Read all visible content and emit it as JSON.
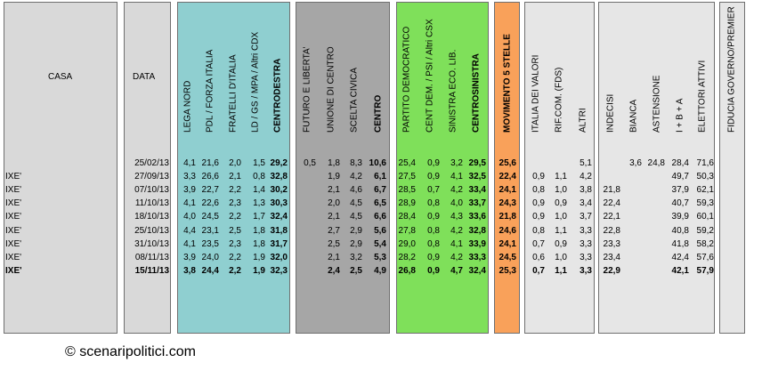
{
  "headers": {
    "casa": "CASA",
    "data": "DATA",
    "cdx": [
      "LEGA NORD",
      "PDL / FORZA ITALIA",
      "FRATELLI D'ITALIA",
      "LD / GS / MPA / Altri CDX",
      "CENTRODESTRA"
    ],
    "centro": [
      "FUTURO E LIBERTA'",
      "UNIONE DI CENTRO",
      "SCELTA CIVICA",
      "CENTRO"
    ],
    "csx": [
      "PARTITO DEMOCRATICO",
      "CENT DEM. / PSI / Altri CSX",
      "SINISTRA ECO. LIB.",
      "CENTROSINISTRA"
    ],
    "m5s": "MOVIMENTO 5 STELLE",
    "altri": [
      "ITALIA DEI VALORI",
      "RIF.COM. (FDS)",
      "ALTRI"
    ],
    "voto": [
      "INDECISI",
      "BIANCA",
      "ASTENSIONE",
      "I + B + A",
      "ELETTORI ATTIVI"
    ],
    "fiducia": "FIDUCIA GOVERNO/PREMIER"
  },
  "rows": [
    {
      "casa": "",
      "data": "25/02/13",
      "vals": [
        "4,1",
        "21,6",
        "2,0",
        "1,5",
        "29,2",
        "0,5",
        "1,8",
        "8,3",
        "10,6",
        "25,4",
        "0,9",
        "3,2",
        "29,5",
        "25,6",
        "",
        "",
        "5,1",
        "",
        "3,6",
        "24,8",
        "28,4",
        "71,6"
      ],
      "bold": false
    },
    {
      "casa": "IXE'",
      "data": "27/09/13",
      "vals": [
        "3,3",
        "26,6",
        "2,1",
        "0,8",
        "32,8",
        "",
        "1,9",
        "4,2",
        "6,1",
        "27,5",
        "0,9",
        "4,1",
        "32,5",
        "22,4",
        "0,9",
        "1,1",
        "4,2",
        "",
        "",
        "",
        "49,7",
        "50,3"
      ],
      "bold": false
    },
    {
      "casa": "IXE'",
      "data": "07/10/13",
      "vals": [
        "3,9",
        "22,7",
        "2,2",
        "1,4",
        "30,2",
        "",
        "2,1",
        "4,6",
        "6,7",
        "28,5",
        "0,7",
        "4,2",
        "33,4",
        "24,1",
        "0,8",
        "1,0",
        "3,8",
        "21,8",
        "",
        "",
        "37,9",
        "62,1"
      ],
      "bold": false
    },
    {
      "casa": "IXE'",
      "data": "11/10/13",
      "vals": [
        "4,1",
        "22,6",
        "2,3",
        "1,3",
        "30,3",
        "",
        "2,0",
        "4,5",
        "6,5",
        "28,9",
        "0,8",
        "4,0",
        "33,7",
        "24,3",
        "0,9",
        "0,9",
        "3,4",
        "22,4",
        "",
        "",
        "40,7",
        "59,3"
      ],
      "bold": false
    },
    {
      "casa": "IXE'",
      "data": "18/10/13",
      "vals": [
        "4,0",
        "24,5",
        "2,2",
        "1,7",
        "32,4",
        "",
        "2,1",
        "4,5",
        "6,6",
        "28,4",
        "0,9",
        "4,3",
        "33,6",
        "21,8",
        "0,9",
        "1,0",
        "3,7",
        "22,1",
        "",
        "",
        "39,9",
        "60,1"
      ],
      "bold": false
    },
    {
      "casa": "IXE'",
      "data": "25/10/13",
      "vals": [
        "4,4",
        "23,1",
        "2,5",
        "1,8",
        "31,8",
        "",
        "2,7",
        "2,9",
        "5,6",
        "27,8",
        "0,8",
        "4,2",
        "32,8",
        "24,6",
        "0,8",
        "1,1",
        "3,3",
        "22,8",
        "",
        "",
        "40,8",
        "59,2"
      ],
      "bold": false
    },
    {
      "casa": "IXE'",
      "data": "31/10/13",
      "vals": [
        "4,1",
        "23,5",
        "2,3",
        "1,8",
        "31,7",
        "",
        "2,5",
        "2,9",
        "5,4",
        "29,0",
        "0,8",
        "4,1",
        "33,9",
        "24,1",
        "0,7",
        "0,9",
        "3,3",
        "23,3",
        "",
        "",
        "41,8",
        "58,2"
      ],
      "bold": false
    },
    {
      "casa": "IXE'",
      "data": "08/11/13",
      "vals": [
        "3,9",
        "24,0",
        "2,2",
        "1,9",
        "32,0",
        "",
        "2,1",
        "3,2",
        "5,3",
        "28,2",
        "0,9",
        "4,2",
        "33,3",
        "24,5",
        "0,6",
        "1,0",
        "3,3",
        "23,4",
        "",
        "",
        "42,4",
        "57,6"
      ],
      "bold": false
    },
    {
      "casa": "IXE'",
      "data": "15/11/13",
      "vals": [
        "3,8",
        "24,4",
        "2,2",
        "1,9",
        "32,3",
        "",
        "2,4",
        "2,5",
        "4,9",
        "26,8",
        "0,9",
        "4,7",
        "32,4",
        "25,3",
        "0,7",
        "1,1",
        "3,3",
        "22,9",
        "",
        "",
        "42,1",
        "57,9"
      ],
      "bold": true
    }
  ],
  "footer": "© scenaripolitici.com"
}
